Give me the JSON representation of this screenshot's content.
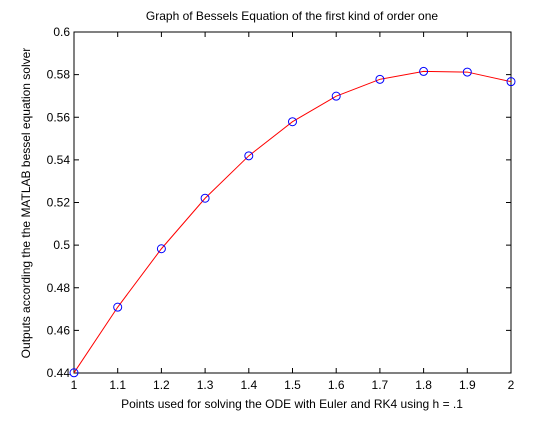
{
  "chart_data": {
    "type": "line",
    "title": "Graph of Bessels Equation of the first kind of order one",
    "xlabel": "Points used for solving the ODE with Euler and RK4 using h = .1",
    "ylabel": "Outputs according the the MATLAB bessel equation solver",
    "xlim": [
      1,
      2
    ],
    "ylim": [
      0.44,
      0.6
    ],
    "x_ticks": [
      "1",
      "1.1",
      "1.2",
      "1.3",
      "1.4",
      "1.5",
      "1.6",
      "1.7",
      "1.8",
      "1.9",
      "2"
    ],
    "y_ticks": [
      "0.44",
      "0.46",
      "0.48",
      "0.5",
      "0.52",
      "0.54",
      "0.56",
      "0.58",
      "0.6"
    ],
    "grid": false,
    "series": [
      {
        "style": "line",
        "color": "#ff0000",
        "x": [
          1,
          1.1,
          1.2,
          1.3,
          1.4,
          1.5,
          1.6,
          1.7,
          1.8,
          1.9,
          2
        ],
        "y": [
          0.4401,
          0.4709,
          0.4983,
          0.522,
          0.5419,
          0.5579,
          0.5699,
          0.5778,
          0.5815,
          0.5812,
          0.5767
        ]
      },
      {
        "style": "markers",
        "marker": "circle",
        "color": "#0000ff",
        "x": [
          1,
          1.1,
          1.2,
          1.3,
          1.4,
          1.5,
          1.6,
          1.7,
          1.8,
          1.9,
          2
        ],
        "y": [
          0.4401,
          0.4709,
          0.4983,
          0.522,
          0.5419,
          0.5579,
          0.5699,
          0.5778,
          0.5815,
          0.5812,
          0.5767
        ]
      }
    ]
  }
}
